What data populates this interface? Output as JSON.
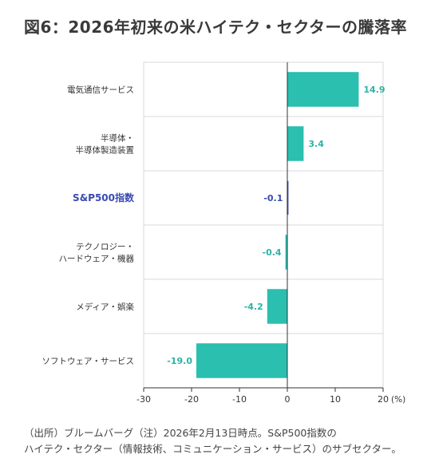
{
  "title": "図6：2026年初来の米ハイテク・セクターの騰落率",
  "chart_data": {
    "type": "bar",
    "orientation": "horizontal",
    "categories": [
      [
        "電気通信サービス"
      ],
      [
        "半導体・",
        "半導体製造装置"
      ],
      [
        "S&P500指数"
      ],
      [
        "テクノロジー・",
        "ハードウェア・機器"
      ],
      [
        "メディア・娯楽"
      ],
      [
        "ソフトウェア・サービス"
      ]
    ],
    "values": [
      14.9,
      3.4,
      -0.1,
      -0.4,
      -4.2,
      -19.0
    ],
    "value_labels": [
      "14.9",
      "3.4",
      "-0.1",
      "-0.4",
      "-4.2",
      "-19.0"
    ],
    "highlight_index": 2,
    "xlim": [
      -30,
      20
    ],
    "xticks": [
      -30,
      -20,
      -10,
      0,
      10,
      20
    ],
    "xunit": "(%)",
    "colors": {
      "bar": "#2bbfb0",
      "highlight": "#3a4bb0",
      "label": "#2bb3a5",
      "grid": "#d9d9d9",
      "axis": "#333333"
    }
  },
  "source": {
    "line1": "（出所）ブルームバーグ（注）2026年2月13日時点。S&P500指数の",
    "line2": "ハイテク・セクター（情報技術、コミュニケーション・サービス）のサブセクター。"
  }
}
